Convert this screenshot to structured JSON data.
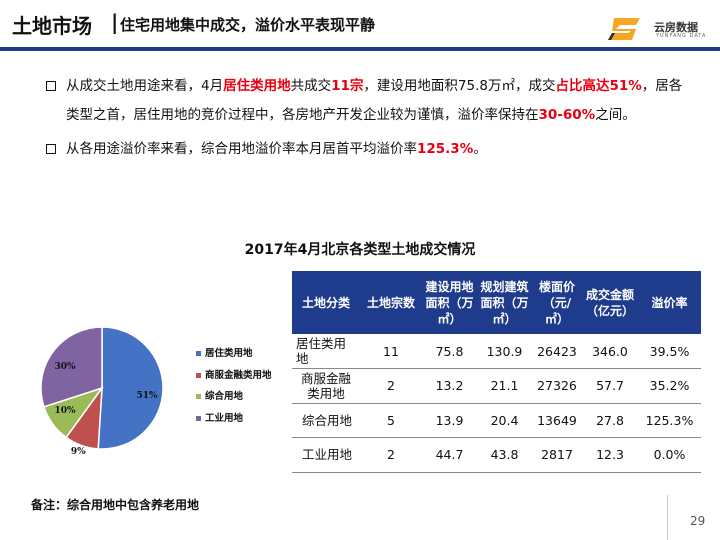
{
  "header": {
    "title_main": "土地市场",
    "title_sep": "|",
    "title_sub": "住宅用地集中成交，溢价水平表现平静"
  },
  "logo": {
    "name_cn": "云房数据",
    "name_en": "YUNFANG DATA"
  },
  "bullets": [
    {
      "segments": [
        {
          "text": "从成交土地用途来看，4月",
          "highlight": false
        },
        {
          "text": "居住类用地",
          "highlight": true
        },
        {
          "text": "共成交",
          "highlight": false
        },
        {
          "text": "11宗",
          "highlight": true
        },
        {
          "text": "，建设用地面积75.8万㎡，成交",
          "highlight": false
        },
        {
          "text": "占比高达51%",
          "highlight": true
        },
        {
          "text": "，居各类型之首，居住用地的竞价过程中，各房地产开发企业较为谨慎，溢价率保持在",
          "highlight": false
        },
        {
          "text": "30-60%",
          "highlight": true
        },
        {
          "text": "之间。",
          "highlight": false
        }
      ]
    },
    {
      "segments": [
        {
          "text": "从各用途溢价率来看，综合用地溢价率本月居首平均溢价率",
          "highlight": false
        },
        {
          "text": "125.3%",
          "highlight": true
        },
        {
          "text": "。",
          "highlight": false
        }
      ]
    }
  ],
  "table_title": "2017年4月北京各类型土地成交情况",
  "chart_data": {
    "type": "pie",
    "categories": [
      "居住类用地",
      "商服金融类用地",
      "综合用地",
      "工业用地"
    ],
    "values": [
      51,
      9,
      10,
      30
    ],
    "labels": [
      "51%",
      "9%",
      "10%",
      "30%"
    ],
    "colors": [
      "#4472c4",
      "#c0504d",
      "#9bbb59",
      "#8064a2"
    ],
    "legend_position": "right"
  },
  "table": {
    "headers": [
      "土地分类",
      "土地宗数",
      "建设用地面积（万㎡）",
      "规划建筑面积（万㎡）",
      "楼面价（元/㎡）",
      "成交金额（亿元）",
      "溢价率"
    ],
    "rows": [
      [
        "居住类用地",
        "11",
        "75.8",
        "130.9",
        "26423",
        "346.0",
        "39.5%"
      ],
      [
        "商服金融类用地",
        "2",
        "13.2",
        "21.1",
        "27326",
        "57.7",
        "35.2%"
      ],
      [
        "综合用地",
        "5",
        "13.9",
        "20.4",
        "13649",
        "27.8",
        "125.3%"
      ],
      [
        "工业用地",
        "2",
        "44.7",
        "43.8",
        "2817",
        "12.3",
        "0.0%"
      ]
    ]
  },
  "note": "备注：综合用地中包含养老用地",
  "page_number": "29"
}
